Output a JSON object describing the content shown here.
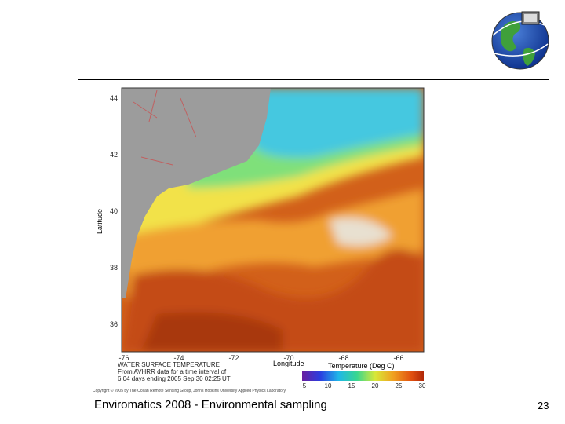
{
  "figure": {
    "lat_ticks": [
      "44",
      "42",
      "40",
      "38",
      "36"
    ],
    "lat_label": "Latitude",
    "lon_ticks": [
      "-76",
      "-74",
      "-72",
      "-70",
      "-68",
      "-66"
    ],
    "lon_label": "Longitude",
    "caption": [
      "WATER SURFACE TEMPERATURE",
      "From AVHRR data for a time interval of",
      "6.04 days ending 2005 Sep 30 02:25 UT"
    ],
    "colorbar_title": "Temperature (Deg C)",
    "colorbar_ticks": [
      "5",
      "10",
      "15",
      "20",
      "25",
      "30"
    ],
    "copyright": "Copyright © 2005 by The Ocean Remote Sensing Group, Johns Hopkins University Applied Physics Laboratory"
  },
  "footer": {
    "text": "Enviromatics 2008 - Environmental sampling",
    "page_number": "23"
  }
}
